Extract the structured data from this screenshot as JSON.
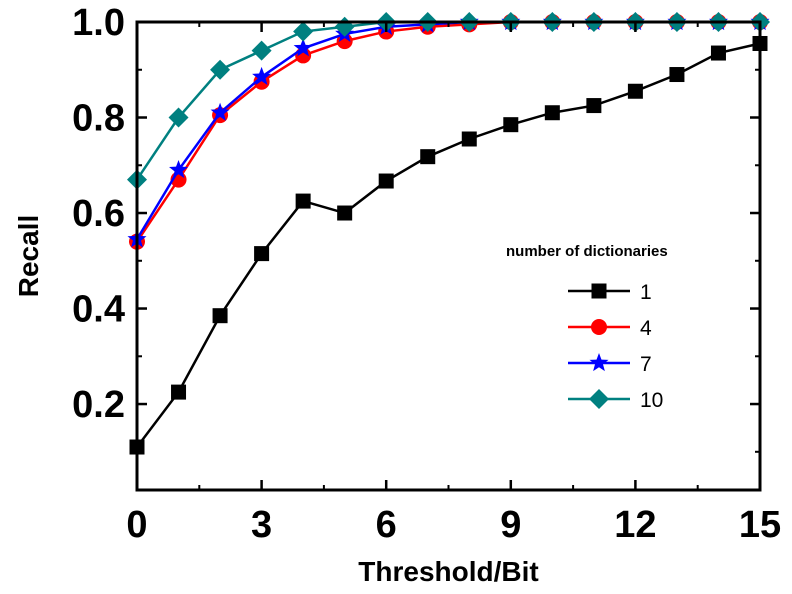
{
  "chart_data": {
    "type": "line",
    "xlabel": "Threshold/Bit",
    "ylabel": "Recall",
    "xlim": [
      0,
      15
    ],
    "ylim": [
      0.02,
      1.0
    ],
    "xticks": [
      0,
      3,
      6,
      9,
      12,
      15
    ],
    "xtick_labels": [
      "0",
      "3",
      "6",
      "9",
      "12",
      "15"
    ],
    "yticks": [
      0.2,
      0.4,
      0.6,
      0.8,
      1.0
    ],
    "ytick_labels": [
      "0.2",
      "0.4",
      "0.6",
      "0.8",
      "1.0"
    ],
    "grid": false,
    "legend": {
      "title": "number of dictionaries",
      "position": "right"
    },
    "x": [
      0,
      1,
      2,
      3,
      4,
      5,
      6,
      7,
      8,
      9,
      10,
      11,
      12,
      13,
      14,
      15
    ],
    "series": [
      {
        "name": "1",
        "color": "#000000",
        "marker": "square",
        "values": [
          0.11,
          0.225,
          0.385,
          0.515,
          0.625,
          0.6,
          0.667,
          0.718,
          0.755,
          0.785,
          0.81,
          0.825,
          0.855,
          0.89,
          0.935,
          0.955
        ]
      },
      {
        "name": "4",
        "color": "#ff0000",
        "marker": "circle",
        "values": [
          0.54,
          0.67,
          0.805,
          0.875,
          0.93,
          0.96,
          0.98,
          0.99,
          0.995,
          1.0,
          1.0,
          1.0,
          1.0,
          1.0,
          1.0,
          1.0
        ]
      },
      {
        "name": "7",
        "color": "#0000ff",
        "marker": "star",
        "values": [
          0.545,
          0.69,
          0.81,
          0.885,
          0.945,
          0.975,
          0.99,
          0.995,
          1.0,
          1.0,
          1.0,
          1.0,
          1.0,
          1.0,
          1.0,
          1.0
        ]
      },
      {
        "name": "10",
        "color": "#008080",
        "marker": "diamond",
        "values": [
          0.67,
          0.8,
          0.9,
          0.94,
          0.98,
          0.99,
          1.0,
          1.0,
          1.0,
          1.0,
          1.0,
          1.0,
          1.0,
          1.0,
          1.0,
          1.0
        ]
      }
    ]
  }
}
